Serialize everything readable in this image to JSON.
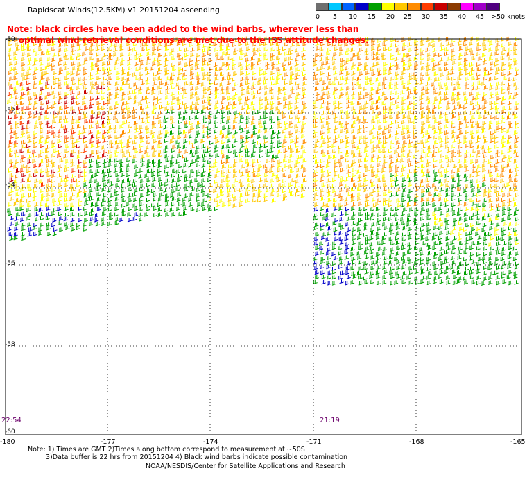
{
  "title": "Rapidscat Winds(12.5KM) v1 20151204 ascending",
  "note": {
    "line1": "Note: black circles have been added to the wind barbs, wherever less than",
    "line2": "optimal wind retrieval conditions are met due to the ISS attitude changes."
  },
  "legend": {
    "labels": [
      "0",
      "5",
      "10",
      "15",
      "20",
      "25",
      "30",
      "35",
      "40",
      "45",
      ">50 knots"
    ],
    "colors": [
      "#6f6f6f",
      "#00c8ff",
      "#0064ff",
      "#0000c8",
      "#00a000",
      "#ffff00",
      "#ffc800",
      "#ff8c00",
      "#ff3c00",
      "#c80000",
      "#8b3a00",
      "#ff00ff",
      "#a000c8",
      "#500080"
    ]
  },
  "axes": {
    "lat_labels": [
      "-50",
      "-52",
      "-54",
      "-56",
      "-58",
      "-60"
    ],
    "lon_labels": [
      "-180",
      "-177",
      "-174",
      "-171",
      "-168",
      "-165"
    ]
  },
  "times": {
    "left": "22:54",
    "right": "21:19"
  },
  "footer": {
    "line1": "Note: 1) Times are GMT 2)Times along bottom correspond to measurement at ~50S",
    "line2": "3)Data buffer is 22 hrs from 20151204 4) Black wind barbs indicate possible contamination",
    "line3": "NOAA/NESDIS/Center for Satellite Applications and Research"
  }
}
